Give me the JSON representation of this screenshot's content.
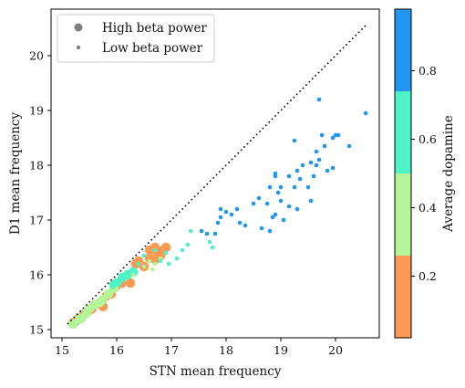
{
  "chart_data": {
    "type": "scatter",
    "xlabel": "STN mean frequency",
    "ylabel": "D1 mean frequency",
    "xlim": [
      14.8,
      20.8
    ],
    "ylim": [
      14.85,
      20.85
    ],
    "xticks": [
      "15",
      "16",
      "17",
      "18",
      "19",
      "20"
    ],
    "yticks": [
      "15",
      "16",
      "17",
      "18",
      "19",
      "20"
    ],
    "grid": false,
    "legend_placement": "top-left",
    "legend": [
      {
        "label": "High beta power",
        "marker": "large-dot",
        "color": "#808080"
      },
      {
        "label": "Low beta power",
        "marker": "small-dot",
        "color": "#808080"
      }
    ],
    "reference_line": {
      "style": "dotted",
      "color": "#000000",
      "from": [
        15.1,
        15.1
      ],
      "to": [
        20.55,
        20.55
      ]
    },
    "colorbar": {
      "label": "Average dopamine",
      "range": [
        0.02,
        0.98
      ],
      "ticks": [
        "0.2",
        "0.4",
        "0.6",
        "0.8"
      ],
      "tick_values": [
        0.2,
        0.4,
        0.6,
        0.8
      ],
      "bins": [
        {
          "from": 0.02,
          "to": 0.26,
          "color": "#FC9953"
        },
        {
          "from": 0.26,
          "to": 0.5,
          "color": "#B3F598"
        },
        {
          "from": 0.5,
          "to": 0.74,
          "color": "#4EF4C6"
        },
        {
          "from": 0.74,
          "to": 0.98,
          "color": "#2196F3"
        }
      ]
    },
    "series": [
      {
        "beta": "high",
        "color": "#FC9953",
        "points": [
          [
            15.2,
            15.12
          ],
          [
            15.25,
            15.15
          ],
          [
            15.3,
            15.2
          ],
          [
            15.4,
            15.28
          ],
          [
            15.5,
            15.35
          ],
          [
            15.6,
            15.45
          ],
          [
            15.55,
            15.38
          ],
          [
            15.75,
            15.42
          ],
          [
            15.8,
            15.6
          ],
          [
            15.9,
            15.65
          ],
          [
            16.0,
            15.8
          ],
          [
            16.1,
            15.85
          ],
          [
            16.25,
            15.85
          ],
          [
            16.2,
            16.0
          ],
          [
            16.35,
            16.2
          ],
          [
            16.4,
            16.25
          ],
          [
            16.5,
            16.15
          ],
          [
            16.6,
            16.3
          ],
          [
            16.6,
            16.45
          ],
          [
            16.7,
            16.5
          ],
          [
            16.75,
            16.4
          ],
          [
            16.8,
            16.35
          ],
          [
            16.9,
            16.5
          ],
          [
            16.7,
            16.28
          ],
          [
            16.85,
            16.45
          ]
        ]
      },
      {
        "beta": "high",
        "color": "#B3F598",
        "points": [
          [
            15.2,
            15.1
          ],
          [
            15.35,
            15.2
          ],
          [
            15.45,
            15.3
          ],
          [
            15.6,
            15.45
          ],
          [
            15.75,
            15.55
          ],
          [
            15.85,
            15.65
          ],
          [
            15.95,
            15.75
          ],
          [
            15.3,
            15.18
          ],
          [
            15.5,
            15.38
          ],
          [
            15.7,
            15.5
          ]
        ]
      },
      {
        "beta": "high",
        "color": "#4EF4C6",
        "points": [
          [
            16.0,
            15.85
          ],
          [
            16.1,
            15.95
          ],
          [
            16.2,
            16.0
          ],
          [
            16.3,
            16.05
          ],
          [
            15.95,
            15.82
          ]
        ]
      },
      {
        "beta": "low",
        "color": "#B3F598",
        "points": [
          [
            15.2,
            15.12
          ],
          [
            15.4,
            15.25
          ],
          [
            15.6,
            15.4
          ],
          [
            15.9,
            15.7
          ],
          [
            16.0,
            15.75
          ],
          [
            16.5,
            16.15
          ],
          [
            16.6,
            16.25
          ],
          [
            16.7,
            16.2
          ],
          [
            16.8,
            16.3
          ],
          [
            16.65,
            16.1
          ],
          [
            15.8,
            15.6
          ],
          [
            16.3,
            16.0
          ]
        ]
      },
      {
        "beta": "low",
        "color": "#4EF4C6",
        "points": [
          [
            16.5,
            16.35
          ],
          [
            16.7,
            16.45
          ],
          [
            16.8,
            16.25
          ],
          [
            16.95,
            16.2
          ],
          [
            17.2,
            16.45
          ],
          [
            17.3,
            16.55
          ],
          [
            17.35,
            16.8
          ],
          [
            17.7,
            16.6
          ],
          [
            17.75,
            16.5
          ],
          [
            17.1,
            16.3
          ],
          [
            16.9,
            16.4
          ],
          [
            16.4,
            16.2
          ]
        ]
      },
      {
        "beta": "low",
        "color": "#2196F3",
        "points": [
          [
            17.55,
            16.8
          ],
          [
            17.65,
            16.75
          ],
          [
            17.8,
            16.75
          ],
          [
            17.85,
            16.95
          ],
          [
            17.9,
            17.05
          ],
          [
            17.9,
            17.2
          ],
          [
            18.0,
            17.15
          ],
          [
            18.1,
            17.1
          ],
          [
            18.2,
            17.2
          ],
          [
            18.25,
            16.95
          ],
          [
            18.35,
            16.9
          ],
          [
            18.5,
            17.3
          ],
          [
            18.6,
            17.4
          ],
          [
            18.65,
            16.85
          ],
          [
            18.75,
            17.3
          ],
          [
            18.8,
            16.8
          ],
          [
            18.85,
            17.05
          ],
          [
            18.9,
            17.1
          ],
          [
            18.95,
            17.5
          ],
          [
            19.0,
            17.35
          ],
          [
            19.05,
            17.0
          ],
          [
            19.15,
            17.25
          ],
          [
            19.25,
            17.6
          ],
          [
            19.3,
            17.2
          ],
          [
            19.35,
            17.75
          ],
          [
            19.4,
            18.0
          ],
          [
            19.5,
            17.6
          ],
          [
            19.55,
            17.35
          ],
          [
            19.6,
            17.8
          ],
          [
            19.65,
            18.25
          ],
          [
            19.7,
            18.1
          ],
          [
            19.8,
            18.35
          ],
          [
            19.85,
            17.9
          ],
          [
            19.95,
            17.95
          ],
          [
            20.0,
            18.55
          ],
          [
            20.05,
            18.55
          ],
          [
            20.25,
            18.35
          ],
          [
            20.55,
            18.95
          ],
          [
            19.75,
            18.55
          ],
          [
            19.65,
            18.0
          ],
          [
            19.55,
            18.05
          ],
          [
            19.3,
            17.9
          ],
          [
            19.25,
            18.45
          ],
          [
            19.15,
            17.8
          ],
          [
            19.0,
            17.6
          ],
          [
            18.9,
            17.8
          ],
          [
            18.9,
            17.85
          ],
          [
            18.8,
            17.6
          ],
          [
            19.7,
            19.2
          ],
          [
            19.95,
            18.5
          ]
        ]
      }
    ]
  }
}
